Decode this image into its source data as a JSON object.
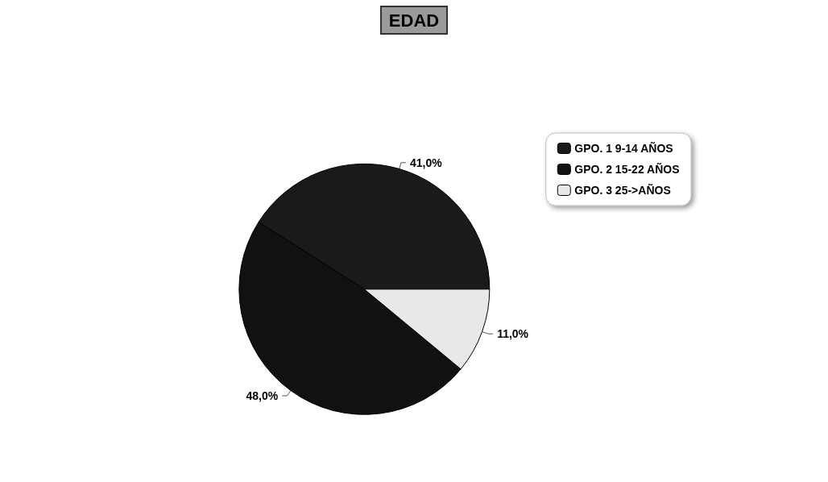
{
  "chart_data": {
    "type": "pie",
    "title": "EDAD",
    "categories": [
      "GPO. 1 9-14 AÑOS",
      "GPO. 2 15-22 AÑOS",
      "GPO. 3 25->AÑOS"
    ],
    "values": [
      41,
      48,
      11
    ],
    "colors": [
      "#1a1a1a",
      "#111111",
      "#e8e8e8"
    ],
    "value_labels": [
      "41,0%",
      "48,0%",
      "11,0%"
    ],
    "legend": "right"
  }
}
